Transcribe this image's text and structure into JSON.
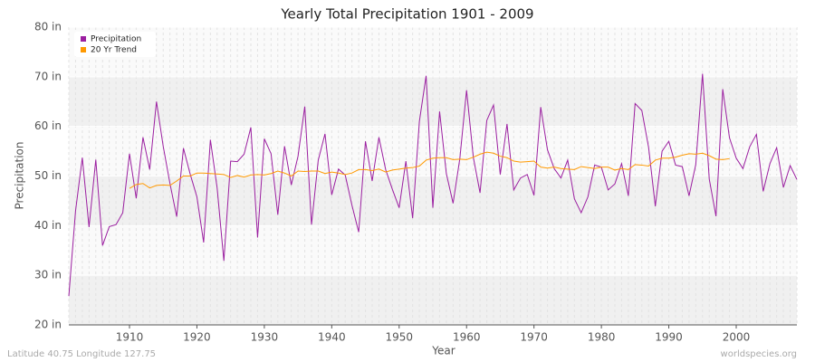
{
  "chart_data": {
    "type": "line",
    "title": "Yearly Total Precipitation 1901 - 2009",
    "x_label": "Year",
    "y_label": "Precipitation",
    "footer_left": "Latitude 40.75 Longitude 127.75",
    "footer_right": "worldspecies.org",
    "x": [
      1901,
      1902,
      1903,
      1904,
      1905,
      1906,
      1907,
      1908,
      1909,
      1910,
      1911,
      1912,
      1913,
      1914,
      1915,
      1916,
      1917,
      1918,
      1919,
      1920,
      1921,
      1922,
      1923,
      1924,
      1925,
      1926,
      1927,
      1928,
      1929,
      1930,
      1931,
      1932,
      1933,
      1934,
      1935,
      1936,
      1937,
      1938,
      1939,
      1940,
      1941,
      1942,
      1943,
      1944,
      1945,
      1946,
      1947,
      1948,
      1949,
      1950,
      1951,
      1952,
      1953,
      1954,
      1955,
      1956,
      1957,
      1958,
      1959,
      1960,
      1961,
      1962,
      1963,
      1964,
      1965,
      1966,
      1967,
      1968,
      1969,
      1970,
      1971,
      1972,
      1973,
      1974,
      1975,
      1976,
      1977,
      1978,
      1979,
      1980,
      1981,
      1982,
      1983,
      1984,
      1985,
      1986,
      1987,
      1988,
      1989,
      1990,
      1991,
      1992,
      1993,
      1994,
      1995,
      1996,
      1997,
      1998,
      1999,
      2000,
      2001,
      2002,
      2003,
      2004,
      2005,
      2006,
      2007,
      2008,
      2009
    ],
    "series": [
      {
        "name": "Precipitation",
        "color": "#9b1fa0",
        "values": [
          25.8,
          43,
          53.7,
          39.7,
          53.3,
          36,
          39.8,
          40.2,
          42.6,
          54.5,
          45.5,
          57.8,
          51.3,
          65,
          56,
          48.5,
          41.8,
          55.6,
          50.4,
          45.8,
          36.6,
          57.3,
          47.6,
          32.9,
          53,
          52.9,
          54.4,
          59.8,
          37.6,
          57.5,
          54.5,
          42.2,
          56,
          48.2,
          54,
          64,
          40.2,
          53.2,
          58.5,
          46.2,
          51.4,
          50.2,
          44.1,
          38.7,
          57,
          49,
          57.8,
          51.3,
          47.3,
          43.6,
          53,
          41.5,
          61,
          70.2,
          43.6,
          63,
          50.5,
          44.5,
          53.5,
          67.3,
          53.8,
          46.6,
          61.2,
          64.3,
          50.3,
          60.5,
          47.2,
          49.6,
          50.3,
          46.1,
          63.9,
          55.3,
          51.5,
          49.6,
          53.2,
          45.4,
          42.6,
          45.8,
          52.2,
          51.8,
          47.2,
          48.4,
          52.5,
          46,
          64.6,
          63.2,
          55.8,
          43.9,
          55,
          57,
          52.2,
          51.9,
          46,
          52.3,
          70.6,
          49.4,
          41.9,
          67.5,
          57.7,
          53.6,
          51.5,
          55.9,
          58.4,
          46.9,
          52.5,
          55.7,
          47.7,
          52.1,
          49.3
        ]
      },
      {
        "name": "20 Yr Trend",
        "color": "#ff9900",
        "values": [
          null,
          null,
          null,
          null,
          null,
          null,
          null,
          null,
          null,
          47.5,
          48.3,
          48.5,
          47.6,
          48.1,
          48.2,
          48.1,
          49,
          50,
          50,
          50.6,
          50.6,
          50.5,
          50.4,
          50.3,
          49.7,
          50.1,
          49.8,
          50.2,
          50.3,
          50.2,
          50.5,
          51,
          50.6,
          50,
          51,
          50.9,
          51,
          51,
          50.5,
          50.8,
          50.6,
          50.3,
          50.6,
          51.3,
          51.3,
          51.1,
          51.4,
          50.8,
          51.2,
          51.4,
          51.6,
          51.7,
          52,
          53.2,
          53.6,
          53.7,
          53.7,
          53.3,
          53.4,
          53.3,
          53.8,
          54.4,
          54.8,
          54.6,
          54,
          53.7,
          53,
          52.8,
          52.9,
          53,
          51.8,
          51.6,
          51.8,
          51.5,
          51.4,
          51.3,
          51.9,
          51.7,
          51.5,
          51.8,
          51.8,
          51.2,
          51.5,
          51.3,
          52.3,
          52.2,
          52,
          53.2,
          53.6,
          53.6,
          53.8,
          54.2,
          54.5,
          54.4,
          54.6,
          54.1,
          53.4,
          53.3,
          53.5,
          null,
          null,
          null,
          null,
          null,
          null,
          null,
          null,
          null,
          null
        ]
      }
    ],
    "xlim": [
      1901,
      2009
    ],
    "xticks": [
      1910,
      1920,
      1930,
      1940,
      1950,
      1960,
      1970,
      1980,
      1990,
      2000
    ],
    "ylim": [
      20,
      80
    ],
    "yticks": [
      {
        "value": 20,
        "label": "20 in"
      },
      {
        "value": 30,
        "label": "30 in"
      },
      {
        "value": 40,
        "label": "40 in"
      },
      {
        "value": 50,
        "label": "50 in"
      },
      {
        "value": 60,
        "label": "60 in"
      },
      {
        "value": 70,
        "label": "70 in"
      },
      {
        "value": 80,
        "label": "80 in"
      }
    ],
    "legend": "top-left"
  }
}
